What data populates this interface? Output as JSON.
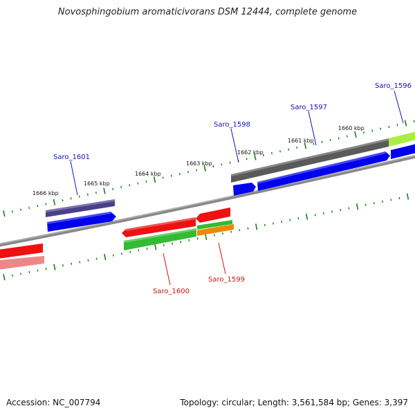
{
  "title": "Novosphingobium aromaticivorans DSM 12444, complete genome",
  "footer": {
    "accession": "Accession: NC_007794",
    "summary": "Topology: circular; Length: 3,561,584 bp; Genes: 3,397"
  },
  "colors": {
    "backbone": "#888888",
    "tick": "#1a7a1a",
    "label_forward": "#1111bb",
    "label_reverse": "#cc1111"
  },
  "scale_labels": [
    "1660 kbp",
    "1661 kbp",
    "1662 kbp",
    "1663 kbp",
    "1664 kbp",
    "1665 kbp",
    "1666 kbp"
  ],
  "gene_labels": {
    "forward": [
      "Saro_1596",
      "Saro_1597",
      "Saro_1598",
      "Saro_1601"
    ],
    "reverse": [
      "Saro_1599",
      "Saro_1600"
    ]
  },
  "feature_colors": {
    "cds_forward": "#0000ee",
    "cds_reverse": "#ee1111",
    "gene_forward_dark": "#555555",
    "gene_forward_purple": "#4a3f8a",
    "gene_reverse_green": "#33bb33",
    "gene_reverse_orange": "#ee8800",
    "gene_reverse_pink": "#ee8888",
    "gene_forward_lime": "#aaee44"
  }
}
